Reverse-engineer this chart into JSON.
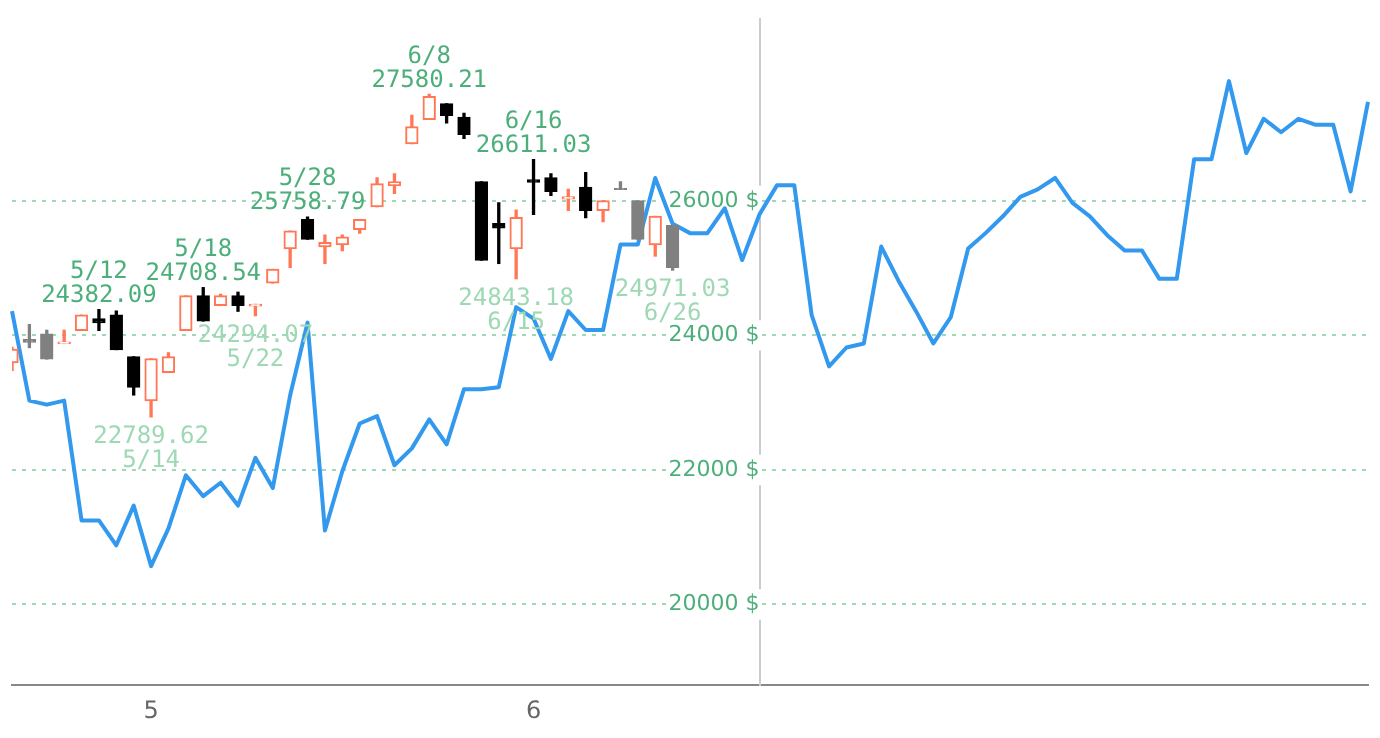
{
  "chart_data": {
    "type": "candlestick",
    "categories": [
      null,
      null,
      null,
      null,
      null,
      null,
      null,
      null,
      "5",
      null,
      null,
      null,
      null,
      null,
      null,
      null,
      null,
      null,
      null,
      null,
      null,
      null,
      null,
      null,
      null,
      null,
      null,
      null,
      null,
      null,
      "6",
      null,
      null,
      null,
      null,
      null,
      null,
      null,
      null,
      null,
      null,
      null,
      null,
      null,
      null,
      null,
      null,
      null,
      null,
      null,
      null,
      null,
      null,
      null,
      null,
      null,
      null,
      null,
      null,
      null,
      null,
      null,
      null,
      null,
      null,
      null,
      null,
      null,
      null,
      null,
      null,
      null,
      null,
      null,
      null,
      null,
      null,
      null,
      null
    ],
    "ohlc": [
      [
        23595,
        23820,
        23481,
        23793
      ],
      [
        23935,
        24160,
        23820,
        23900
      ],
      [
        24020,
        24075,
        23650,
        23650
      ],
      [
        23880,
        24075,
        23880,
        23900
      ],
      [
        24075,
        24300,
        24075,
        24300
      ],
      [
        24245,
        24382.09,
        24075,
        24190
      ],
      [
        24300,
        24360,
        23790,
        23790
      ],
      [
        23680,
        23680,
        23115,
        23230
      ],
      [
        23030,
        23650,
        22789.62,
        23650
      ],
      [
        23450,
        23740,
        23450,
        23680
      ],
      [
        24075,
        24585,
        24075,
        24585
      ],
      [
        24585,
        24708.54,
        24215,
        24215
      ],
      [
        24445,
        24610,
        24445,
        24585
      ],
      [
        24585,
        24640,
        24360,
        24445
      ],
      [
        24440,
        24460,
        24294.07,
        24460
      ],
      [
        24780,
        24980,
        24780,
        24980
      ],
      [
        25290,
        25550,
        25010,
        25550
      ],
      [
        25720,
        25758.79,
        25430,
        25430
      ],
      [
        25320,
        25490,
        25070,
        25380
      ],
      [
        25350,
        25490,
        25260,
        25460
      ],
      [
        25575,
        25720,
        25520,
        25720
      ],
      [
        25915,
        26340,
        25915,
        26250
      ],
      [
        26230,
        26400,
        26110,
        26280
      ],
      [
        26850,
        27270,
        26850,
        27100
      ],
      [
        27210,
        27580.21,
        27210,
        27550
      ],
      [
        27440,
        27440,
        27160,
        27270
      ],
      [
        27240,
        27300,
        26930,
        26990
      ],
      [
        26280,
        26280,
        25120,
        25120
      ],
      [
        25660,
        25970,
        25070,
        25600
      ],
      [
        25290,
        25860,
        24843.18,
        25750
      ],
      [
        26310,
        26611.03,
        25800,
        26280
      ],
      [
        26340,
        26400,
        26080,
        26140
      ],
      [
        26030,
        26170,
        25860,
        26060
      ],
      [
        26200,
        26420,
        25750,
        25860
      ],
      [
        25860,
        26000,
        25690,
        26000
      ],
      [
        26180,
        26280,
        26170,
        26170
      ],
      [
        26000,
        26000,
        25430,
        25430
      ],
      [
        25350,
        25770,
        25180,
        25770
      ],
      [
        25630,
        25630,
        24971.03,
        25010
      ],
      null,
      null,
      null,
      null,
      null,
      null,
      null,
      null,
      null,
      null,
      null,
      null,
      null,
      null,
      null,
      null,
      null,
      null,
      null,
      null,
      null,
      null,
      null,
      null,
      null,
      null,
      null,
      null,
      null,
      null,
      null,
      null,
      null,
      null,
      null,
      null,
      null,
      null,
      null,
      null
    ],
    "colors": [
      "#ff7755",
      "#808080",
      "#808080",
      "#ff7755",
      "#ff7755",
      "#000000",
      "#000000",
      "#000000",
      "#ff7755",
      "#ff7755",
      "#ff7755",
      "#000000",
      "#ff7755",
      "#000000",
      "#ff7755",
      "#ff7755",
      "#ff7755",
      "#000000",
      "#ff7755",
      "#ff7755",
      "#ff7755",
      "#ff7755",
      "#ff7755",
      "#ff7755",
      "#ff7755",
      "#000000",
      "#000000",
      "#000000",
      "#000000",
      "#ff7755",
      "#000000",
      "#000000",
      "#ff7755",
      "#000000",
      "#ff7755",
      "#808080",
      "#808080",
      "#ff7755",
      "#808080",
      null,
      null,
      null,
      null,
      null,
      null,
      null,
      null,
      null,
      null,
      null,
      null,
      null,
      null,
      null,
      null,
      null,
      null,
      null,
      null,
      null,
      null,
      null,
      null,
      null,
      null,
      null,
      null,
      null,
      null,
      null,
      null,
      null,
      null,
      null,
      null,
      null,
      null,
      null,
      null
    ],
    "series": [
      {
        "type": "line",
        "color": "#3399ee",
        "values": [
          24360,
          23030,
          22970,
          23030,
          21250,
          21250,
          20880,
          21470,
          20570,
          21130,
          21920,
          21610,
          21810,
          21470,
          22180,
          21730,
          23110,
          24190,
          21100,
          21980,
          22690,
          22800,
          22070,
          22320,
          22750,
          22380,
          23200,
          23200,
          23230,
          24420,
          24250,
          23650,
          24360,
          24080,
          24080,
          25350,
          25350,
          26340,
          25660,
          25520,
          25520,
          25890,
          25120,
          25800,
          26230,
          26230,
          24300,
          23540,
          23820,
          23880,
          25320,
          24810,
          24360,
          23880,
          24270,
          25290,
          25520,
          25770,
          26060,
          26170,
          26340,
          25970,
          25770,
          25490,
          25260,
          25260,
          24840,
          24840,
          26620,
          26620,
          27780,
          26710,
          27220,
          27020,
          27220,
          27130,
          27130,
          26140,
          27470
        ]
      }
    ],
    "ylim": [
      18800,
      28700
    ],
    "yticks": [
      {
        "value": 20000,
        "label": "20000 $"
      },
      {
        "value": 22000,
        "label": "22000 $"
      },
      {
        "value": 24000,
        "label": "24000 $"
      },
      {
        "value": 26000,
        "label": "26000 $"
      }
    ],
    "grid": "y",
    "legend": false,
    "marker": "none",
    "line_style": "solid",
    "annotations": [
      {
        "text": "5/12\n24382.09",
        "y": 24382.09
      },
      {
        "text": "22789.62\n5/14",
        "y": 22789.62
      },
      {
        "text": "5/18\n24708.54",
        "y": 24708.54
      },
      {
        "text": "24294.07\n5/22",
        "y": 24294.07
      },
      {
        "text": "5/28\n25758.79",
        "y": 25758.79
      },
      {
        "text": "6/8\n27580.21",
        "y": 27580.21
      },
      {
        "text": "24843.18\n6/15",
        "y": 24843.18
      },
      {
        "text": "6/16\n26611.03",
        "y": 26611.03
      },
      {
        "text": "24971.03\n6/26",
        "y": 24971.03
      }
    ]
  }
}
